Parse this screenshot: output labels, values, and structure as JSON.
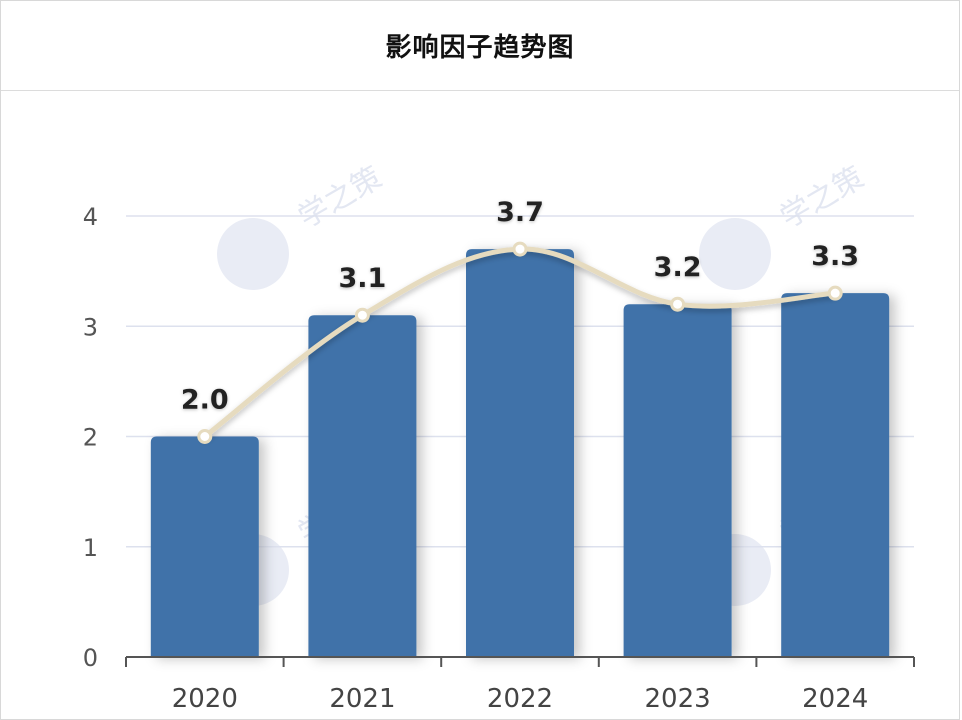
{
  "header": {
    "title": "影响因子趋势图"
  },
  "watermark": {
    "text": "学之策"
  },
  "colors": {
    "bar": "#3f72a9",
    "line": "#e6dbbf",
    "marker_fill": "#ffffff",
    "grid": "#dde1ee",
    "axis": "#555555"
  },
  "chart_data": {
    "type": "bar",
    "title": "影响因子趋势图",
    "xlabel": "",
    "ylabel": "",
    "categories": [
      "2020",
      "2021",
      "2022",
      "2023",
      "2024"
    ],
    "series": [
      {
        "type": "bar",
        "values": [
          2.0,
          3.1,
          3.7,
          3.2,
          3.3
        ]
      },
      {
        "type": "line",
        "smooth": true,
        "values": [
          2.0,
          3.1,
          3.7,
          3.2,
          3.3
        ]
      }
    ],
    "data_labels": [
      "2.0",
      "3.1",
      "3.7",
      "3.2",
      "3.3"
    ],
    "yticks": [
      "0",
      "1",
      "2",
      "3",
      "4"
    ],
    "ylim": [
      0,
      4
    ],
    "grid": true
  }
}
